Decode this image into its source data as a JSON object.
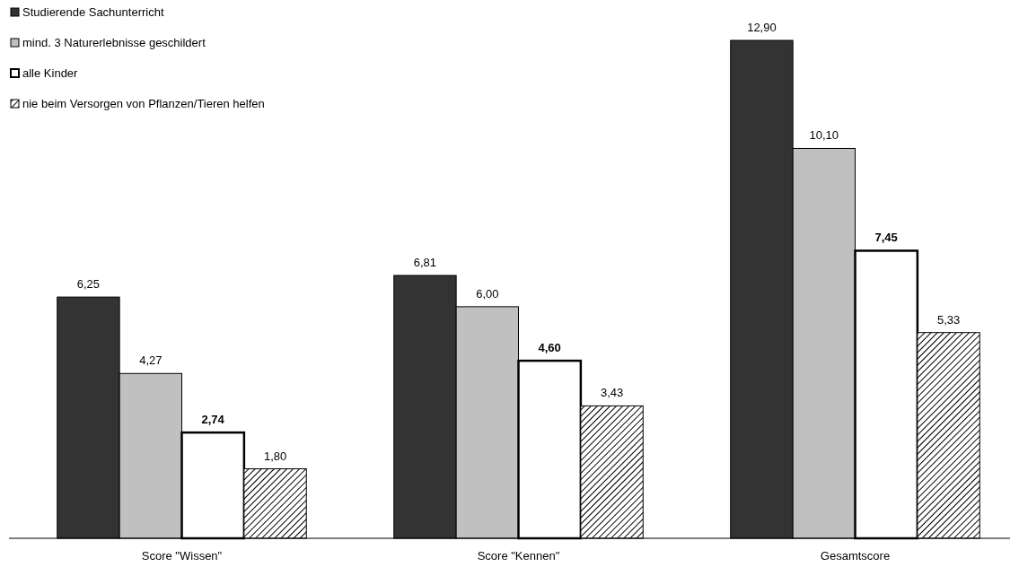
{
  "chart_data": {
    "type": "bar",
    "categories": [
      "Score \"Wissen\"",
      "Score \"Kennen\"",
      "Gesamtscore"
    ],
    "series": [
      {
        "name": "Studierende Sachunterricht",
        "color": "#333333",
        "values": [
          6.25,
          6.81,
          12.9
        ],
        "value_labels": [
          "6,25",
          "6,81",
          "12,90"
        ]
      },
      {
        "name": "mind. 3 Naturerlebnisse geschildert",
        "color": "#c0c0c0",
        "values": [
          4.27,
          6.0,
          10.1
        ],
        "value_labels": [
          "4,27",
          "6,00",
          "10,10"
        ]
      },
      {
        "name": "alle Kinder",
        "color": "#ffffff",
        "values": [
          2.74,
          4.6,
          7.45
        ],
        "value_labels": [
          "2,74",
          "4,60",
          "7,45"
        ]
      },
      {
        "name": "nie beim Versorgen von Pflanzen/Tieren helfen",
        "color": "#000000",
        "values": [
          1.8,
          3.43,
          5.33
        ],
        "value_labels": [
          "1,80",
          "3,43",
          "5,33"
        ]
      }
    ],
    "legend": "top left"
  }
}
